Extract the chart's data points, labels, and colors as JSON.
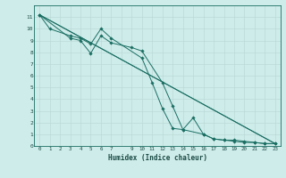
{
  "xlabel": "Humidex (Indice chaleur)",
  "bg_color": "#ceecea",
  "grid_color": "#b8d8d4",
  "line_color": "#1a6e62",
  "xlim": [
    -0.5,
    23.5
  ],
  "ylim": [
    0,
    12
  ],
  "xtick_vals": [
    0,
    1,
    2,
    3,
    4,
    5,
    6,
    7,
    9,
    10,
    11,
    12,
    13,
    14,
    15,
    16,
    17,
    18,
    19,
    20,
    21,
    22,
    23
  ],
  "ytick_vals": [
    0,
    1,
    2,
    3,
    4,
    5,
    6,
    7,
    8,
    9,
    10,
    11
  ],
  "series": [
    {
      "x": [
        0,
        1,
        3,
        4,
        5,
        6,
        7,
        10,
        11,
        12,
        13,
        14,
        15,
        16,
        17,
        18,
        19,
        20,
        21,
        22,
        23
      ],
      "y": [
        11.2,
        10.0,
        9.4,
        9.2,
        8.7,
        10.0,
        9.2,
        7.5,
        5.4,
        3.2,
        1.5,
        1.4,
        2.4,
        1.0,
        0.6,
        0.5,
        0.5,
        0.4,
        0.3,
        0.2,
        0.2
      ],
      "marker": "D",
      "markersize": 1.8,
      "lw": 0.7
    },
    {
      "x": [
        0,
        3,
        4,
        5,
        6,
        7,
        9,
        10,
        12,
        13,
        14,
        16,
        17,
        18,
        19,
        20,
        21,
        22,
        23
      ],
      "y": [
        11.2,
        9.2,
        9.0,
        7.9,
        9.4,
        8.8,
        8.4,
        8.1,
        5.4,
        3.4,
        1.4,
        1.0,
        0.6,
        0.5,
        0.4,
        0.3,
        0.3,
        0.2,
        0.2
      ],
      "marker": "D",
      "markersize": 1.8,
      "lw": 0.7
    },
    {
      "x": [
        0,
        23
      ],
      "y": [
        11.2,
        0.2
      ],
      "marker": null,
      "markersize": 0,
      "lw": 0.7
    },
    {
      "x": [
        0,
        23
      ],
      "y": [
        11.2,
        0.2
      ],
      "marker": null,
      "markersize": 0,
      "lw": 0.7
    }
  ]
}
